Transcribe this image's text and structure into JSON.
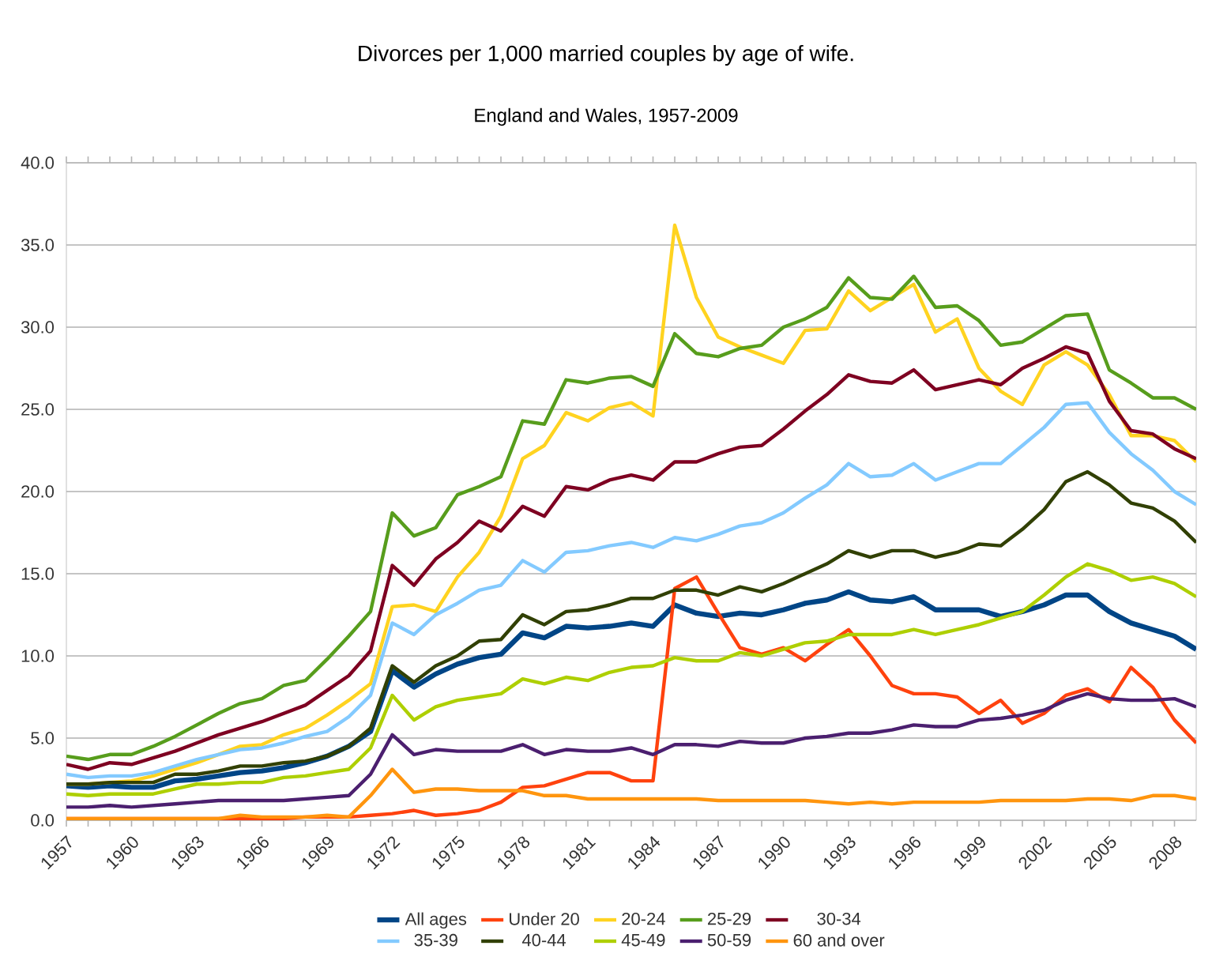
{
  "chart_data": {
    "type": "line",
    "title": "Divorces per 1,000 married couples by age of wife.",
    "subtitle": "England and Wales, 1957-2009",
    "x": [
      1957,
      1958,
      1959,
      1960,
      1961,
      1962,
      1963,
      1964,
      1965,
      1966,
      1967,
      1968,
      1969,
      1970,
      1971,
      1972,
      1973,
      1974,
      1975,
      1976,
      1977,
      1978,
      1979,
      1980,
      1981,
      1982,
      1983,
      1984,
      1985,
      1986,
      1987,
      1988,
      1989,
      1990,
      1991,
      1992,
      1993,
      1994,
      1995,
      1996,
      1997,
      1998,
      1999,
      2000,
      2001,
      2002,
      2003,
      2004,
      2005,
      2006,
      2007,
      2008,
      2009
    ],
    "xlim": [
      1957,
      2009
    ],
    "xticks": [
      1957,
      1960,
      1963,
      1966,
      1969,
      1972,
      1975,
      1978,
      1981,
      1984,
      1987,
      1990,
      1993,
      1996,
      1999,
      2002,
      2005,
      2008
    ],
    "ylim": [
      0,
      40
    ],
    "yticks": [
      {
        "value": 0,
        "label": "0.0"
      },
      {
        "value": 5,
        "label": "5.0"
      },
      {
        "value": 10,
        "label": "10.0"
      },
      {
        "value": 15,
        "label": "15.0"
      },
      {
        "value": 20,
        "label": "20.0"
      },
      {
        "value": 25,
        "label": "25.0"
      },
      {
        "value": 30,
        "label": "30.0"
      },
      {
        "value": 35,
        "label": "35.0"
      },
      {
        "value": 40,
        "label": "40.0"
      }
    ],
    "grid": "y",
    "legend": "bottom",
    "series": [
      {
        "name": "All ages",
        "color": "#004586",
        "values": [
          2.1,
          2.0,
          2.1,
          2.0,
          2.0,
          2.4,
          2.5,
          2.7,
          2.9,
          3.0,
          3.2,
          3.5,
          3.9,
          4.5,
          5.4,
          9.1,
          8.1,
          8.9,
          9.5,
          9.9,
          10.1,
          11.4,
          11.1,
          11.8,
          11.7,
          11.8,
          12.0,
          11.8,
          13.1,
          12.6,
          12.4,
          12.6,
          12.5,
          12.8,
          13.2,
          13.4,
          13.9,
          13.4,
          13.3,
          13.6,
          12.8,
          12.8,
          12.8,
          12.4,
          12.7,
          13.1,
          13.7,
          13.7,
          12.7,
          12.0,
          11.6,
          11.2,
          10.4
        ]
      },
      {
        "name": "Under 20",
        "color": "#ff420e",
        "values": [
          0.1,
          0.1,
          0.1,
          0.1,
          0.1,
          0.1,
          0.1,
          0.1,
          0.1,
          0.1,
          0.1,
          0.2,
          0.2,
          0.2,
          0.3,
          0.4,
          0.6,
          0.3,
          0.4,
          0.6,
          1.1,
          2.0,
          2.1,
          2.5,
          2.9,
          2.9,
          2.4,
          2.4,
          14.1,
          14.8,
          12.6,
          10.5,
          10.1,
          10.5,
          9.7,
          10.7,
          11.6,
          10.0,
          8.2,
          7.7,
          7.7,
          7.5,
          6.5,
          7.3,
          5.9,
          6.5,
          7.6,
          8.0,
          7.2,
          9.3,
          8.1,
          6.1,
          4.7
        ]
      },
      {
        "name": "20-24",
        "color": "#ffd320",
        "values": [
          2.2,
          2.2,
          2.3,
          2.4,
          2.7,
          3.1,
          3.5,
          4.0,
          4.5,
          4.6,
          5.2,
          5.6,
          6.4,
          7.3,
          8.3,
          13.0,
          13.1,
          12.7,
          14.8,
          16.3,
          18.5,
          22.0,
          22.8,
          24.8,
          24.3,
          25.1,
          25.4,
          24.6,
          36.2,
          31.8,
          29.4,
          28.8,
          28.3,
          27.8,
          29.8,
          29.9,
          32.2,
          31.0,
          31.8,
          32.6,
          29.7,
          30.5,
          27.5,
          26.1,
          25.3,
          27.7,
          28.5,
          27.7,
          25.9,
          23.4,
          23.4,
          23.1,
          21.8
        ]
      },
      {
        "name": "25-29",
        "color": "#579d1c",
        "values": [
          3.9,
          3.7,
          4.0,
          4.0,
          4.5,
          5.1,
          5.8,
          6.5,
          7.1,
          7.4,
          8.2,
          8.5,
          9.8,
          11.2,
          12.7,
          18.7,
          17.3,
          17.8,
          19.8,
          20.3,
          20.9,
          24.3,
          24.1,
          26.8,
          26.6,
          26.9,
          27.0,
          26.4,
          29.6,
          28.4,
          28.2,
          28.7,
          28.9,
          30.0,
          30.5,
          31.2,
          33.0,
          31.8,
          31.7,
          33.1,
          31.2,
          31.3,
          30.4,
          28.9,
          29.1,
          29.9,
          30.7,
          30.8,
          27.4,
          26.6,
          25.7,
          25.7,
          25.0
        ]
      },
      {
        "name": "30-34",
        "color": "#7e0021",
        "values": [
          3.4,
          3.1,
          3.5,
          3.4,
          3.8,
          4.2,
          4.7,
          5.2,
          5.6,
          6.0,
          6.5,
          7.0,
          7.9,
          8.8,
          10.3,
          15.5,
          14.3,
          15.9,
          16.9,
          18.2,
          17.6,
          19.1,
          18.5,
          20.3,
          20.1,
          20.7,
          21.0,
          20.7,
          21.8,
          21.8,
          22.3,
          22.7,
          22.8,
          23.8,
          24.9,
          25.9,
          27.1,
          26.7,
          26.6,
          27.4,
          26.2,
          26.5,
          26.8,
          26.5,
          27.5,
          28.1,
          28.8,
          28.4,
          25.5,
          23.7,
          23.5,
          22.6,
          22.0
        ]
      },
      {
        "name": "35-39",
        "color": "#83caff",
        "values": [
          2.8,
          2.6,
          2.7,
          2.7,
          2.9,
          3.3,
          3.7,
          4.0,
          4.3,
          4.4,
          4.7,
          5.1,
          5.4,
          6.3,
          7.6,
          12.0,
          11.3,
          12.5,
          13.2,
          14.0,
          14.3,
          15.8,
          15.1,
          16.3,
          16.4,
          16.7,
          16.9,
          16.6,
          17.2,
          17.0,
          17.4,
          17.9,
          18.1,
          18.7,
          19.6,
          20.4,
          21.7,
          20.9,
          21.0,
          21.7,
          20.7,
          21.2,
          21.7,
          21.7,
          22.8,
          23.9,
          25.3,
          25.4,
          23.6,
          22.3,
          21.3,
          20.0,
          19.2
        ]
      },
      {
        "name": "40-44",
        "color": "#314004",
        "values": [
          2.2,
          2.2,
          2.3,
          2.3,
          2.3,
          2.8,
          2.8,
          3.0,
          3.3,
          3.3,
          3.5,
          3.6,
          3.9,
          4.5,
          5.6,
          9.4,
          8.4,
          9.4,
          10.0,
          10.9,
          11.0,
          12.5,
          11.9,
          12.7,
          12.8,
          13.1,
          13.5,
          13.5,
          14.0,
          14.0,
          13.7,
          14.2,
          13.9,
          14.4,
          15.0,
          15.6,
          16.4,
          16.0,
          16.4,
          16.4,
          16.0,
          16.3,
          16.8,
          16.7,
          17.7,
          18.9,
          20.6,
          21.2,
          20.4,
          19.3,
          19.0,
          18.2,
          16.9
        ]
      },
      {
        "name": "45-49",
        "color": "#aecf00",
        "values": [
          1.6,
          1.5,
          1.6,
          1.6,
          1.6,
          1.9,
          2.2,
          2.2,
          2.3,
          2.3,
          2.6,
          2.7,
          2.9,
          3.1,
          4.4,
          7.6,
          6.1,
          6.9,
          7.3,
          7.5,
          7.7,
          8.6,
          8.3,
          8.7,
          8.5,
          9.0,
          9.3,
          9.4,
          9.9,
          9.7,
          9.7,
          10.2,
          10.0,
          10.4,
          10.8,
          10.9,
          11.3,
          11.3,
          11.3,
          11.6,
          11.3,
          11.6,
          11.9,
          12.3,
          12.7,
          13.7,
          14.8,
          15.6,
          15.2,
          14.6,
          14.8,
          14.4,
          13.6
        ]
      },
      {
        "name": "50-59",
        "color": "#4b1f6f",
        "values": [
          0.8,
          0.8,
          0.9,
          0.8,
          0.9,
          1.0,
          1.1,
          1.2,
          1.2,
          1.2,
          1.2,
          1.3,
          1.4,
          1.5,
          2.8,
          5.2,
          4.0,
          4.3,
          4.2,
          4.2,
          4.2,
          4.6,
          4.0,
          4.3,
          4.2,
          4.2,
          4.4,
          4.0,
          4.6,
          4.6,
          4.5,
          4.8,
          4.7,
          4.7,
          5.0,
          5.1,
          5.3,
          5.3,
          5.5,
          5.8,
          5.7,
          5.7,
          6.1,
          6.2,
          6.4,
          6.7,
          7.3,
          7.7,
          7.4,
          7.3,
          7.3,
          7.4,
          6.9
        ]
      },
      {
        "name": "60 and over",
        "color": "#ff950e",
        "values": [
          0.1,
          0.1,
          0.1,
          0.1,
          0.1,
          0.1,
          0.1,
          0.1,
          0.3,
          0.2,
          0.2,
          0.2,
          0.3,
          0.2,
          1.5,
          3.1,
          1.7,
          1.9,
          1.9,
          1.8,
          1.8,
          1.8,
          1.5,
          1.5,
          1.3,
          1.3,
          1.3,
          1.3,
          1.3,
          1.3,
          1.2,
          1.2,
          1.2,
          1.2,
          1.2,
          1.1,
          1.0,
          1.1,
          1.0,
          1.1,
          1.1,
          1.1,
          1.1,
          1.2,
          1.2,
          1.2,
          1.2,
          1.3,
          1.3,
          1.2,
          1.5,
          1.5,
          1.3
        ]
      }
    ]
  }
}
